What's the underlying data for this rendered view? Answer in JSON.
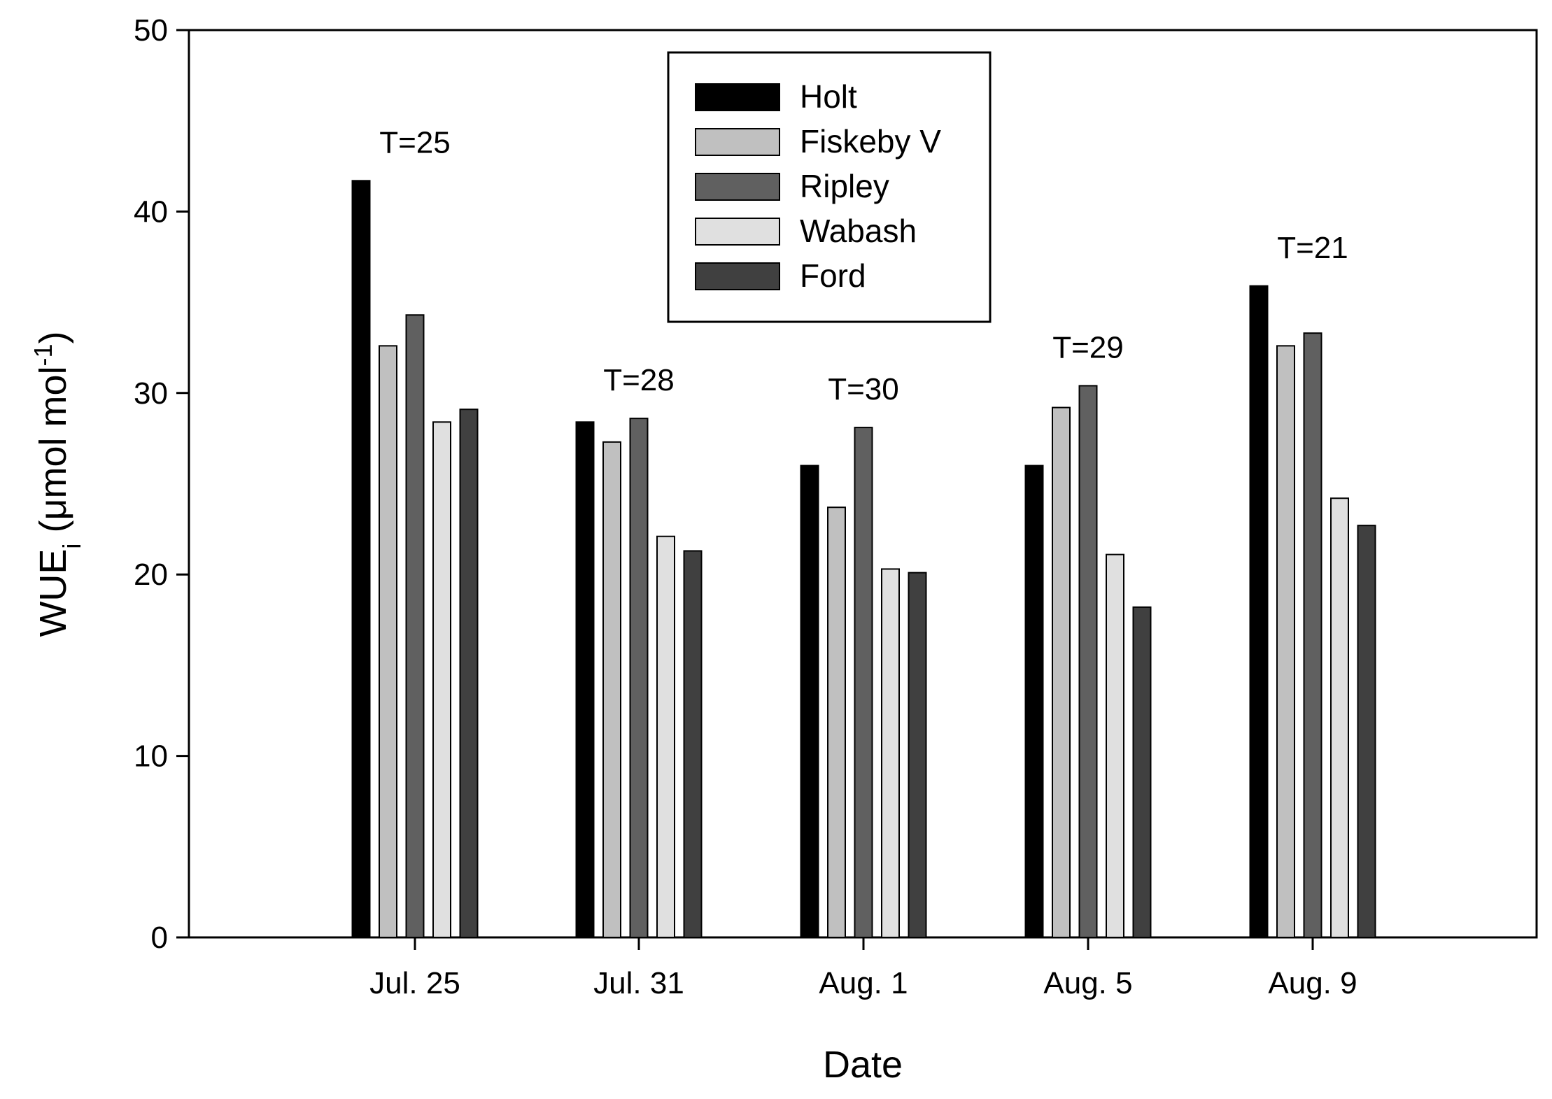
{
  "chart_data": {
    "type": "bar",
    "title": "",
    "xlabel": "Date",
    "ylabel": {
      "base": "WUE",
      "sub": "i",
      "unit_open": " (μmol mol",
      "sup": "-1",
      "unit_close": ")"
    },
    "ylim": [
      0,
      50
    ],
    "yticks": [
      0,
      10,
      20,
      30,
      40,
      50
    ],
    "categories": [
      "Jul. 25",
      "Jul. 31",
      "Aug. 1",
      "Aug. 5",
      "Aug. 9"
    ],
    "annotations": [
      "T=25",
      "T=28",
      "T=30",
      "T=29",
      "T=21"
    ],
    "series": [
      {
        "name": "Holt",
        "color": "#000000",
        "values": [
          41.7,
          28.4,
          26.0,
          26.0,
          35.9
        ]
      },
      {
        "name": "Fiskeby V",
        "color": "#c0c0c0",
        "values": [
          32.6,
          27.3,
          23.7,
          29.2,
          32.6
        ]
      },
      {
        "name": "Ripley",
        "color": "#606060",
        "values": [
          34.3,
          28.6,
          28.1,
          30.4,
          33.3
        ]
      },
      {
        "name": "Wabash",
        "color": "#e0e0e0",
        "values": [
          28.4,
          22.1,
          20.3,
          21.1,
          24.2
        ]
      },
      {
        "name": "Ford",
        "color": "#404040",
        "values": [
          29.1,
          21.3,
          20.1,
          18.2,
          22.7
        ]
      }
    ],
    "legend_position": "top-center",
    "grid": false
  }
}
